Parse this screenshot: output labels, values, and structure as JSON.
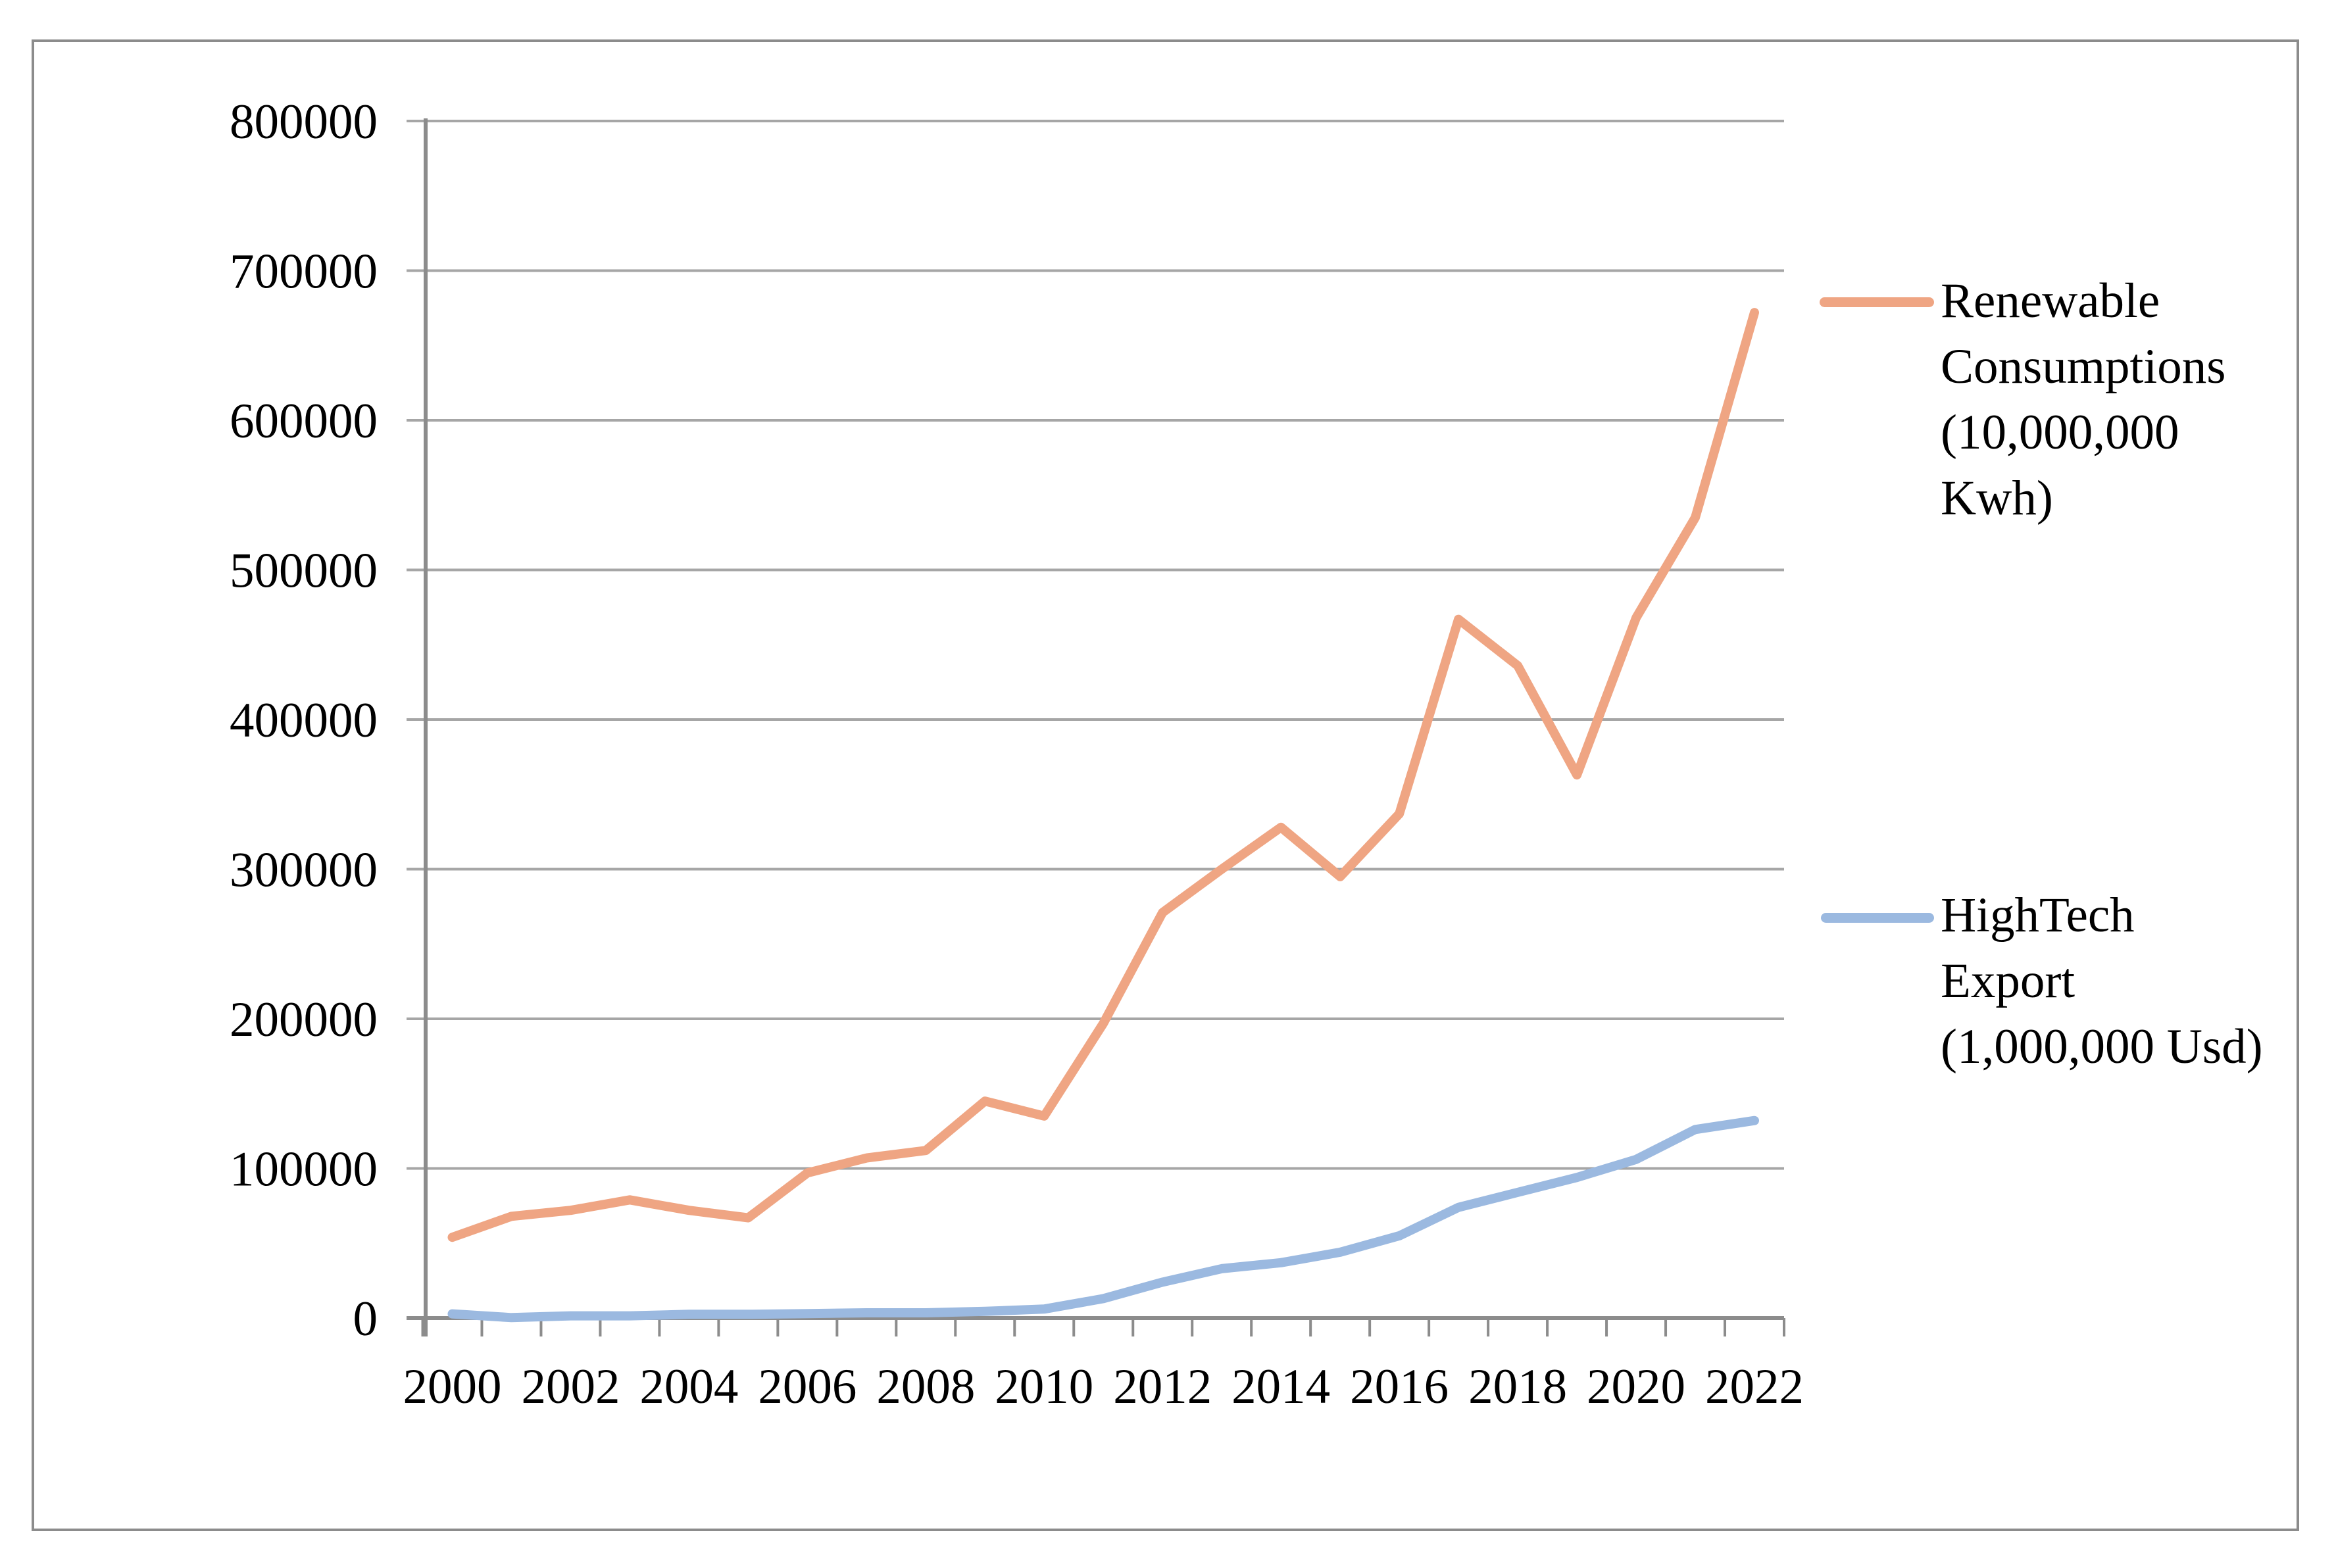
{
  "chart_data": {
    "type": "line",
    "title": "",
    "xlabel": "",
    "ylabel": "",
    "x": [
      2000,
      2001,
      2002,
      2003,
      2004,
      2005,
      2006,
      2007,
      2008,
      2009,
      2010,
      2011,
      2012,
      2013,
      2014,
      2015,
      2016,
      2017,
      2018,
      2019,
      2020,
      2021,
      2022
    ],
    "series": [
      {
        "name": "Renewable Consumptions (10,000,000 Kwh)",
        "color": "#efa583",
        "values": [
          54000,
          68000,
          72000,
          79000,
          72000,
          67000,
          97000,
          107000,
          112000,
          145000,
          135000,
          197000,
          271000,
          300000,
          328000,
          295000,
          337000,
          467000,
          436000,
          363000,
          468000,
          535000,
          672000
        ]
      },
      {
        "name": "HighTech Export (1,000,000 Usd)",
        "color": "#9bb9e0",
        "values": [
          2800,
          300,
          1500,
          1500,
          2500,
          2500,
          3000,
          3500,
          3500,
          4500,
          6000,
          13000,
          24000,
          33000,
          37000,
          44000,
          55000,
          74000,
          84000,
          94000,
          106000,
          126000,
          132000
        ]
      }
    ],
    "ylim": [
      0,
      800000
    ],
    "y_ticks": [
      0,
      100000,
      200000,
      300000,
      400000,
      500000,
      600000,
      700000,
      800000
    ],
    "y_tick_labels": [
      "0",
      "100000",
      "200000",
      "300000",
      "400000",
      "500000",
      "600000",
      "700000",
      "800000"
    ],
    "x_tick_labels_visible": [
      "2000",
      "2002",
      "2004",
      "2006",
      "2008",
      "2010",
      "2012",
      "2014",
      "2016",
      "2018",
      "2020",
      "2022"
    ],
    "x_label_every": 2,
    "grid": "horizontal",
    "legend_position": "right"
  },
  "legend": {
    "items": [
      {
        "lines": [
          "Renewable",
          "Consumptions",
          "(10,000,000",
          "Kwh)"
        ],
        "color": "#efa583"
      },
      {
        "lines": [
          "HighTech",
          "Export",
          "(1,000,000 Usd)"
        ],
        "color": "#9bb9e0"
      }
    ]
  },
  "colors": {
    "background": "#ffffff",
    "frame_border": "#8c8c8c",
    "gridline": "#a6a6a6",
    "axis": "#8c8c8c",
    "series_renewable": "#efa583",
    "series_hightech": "#9bb9e0",
    "text": "#000000"
  }
}
